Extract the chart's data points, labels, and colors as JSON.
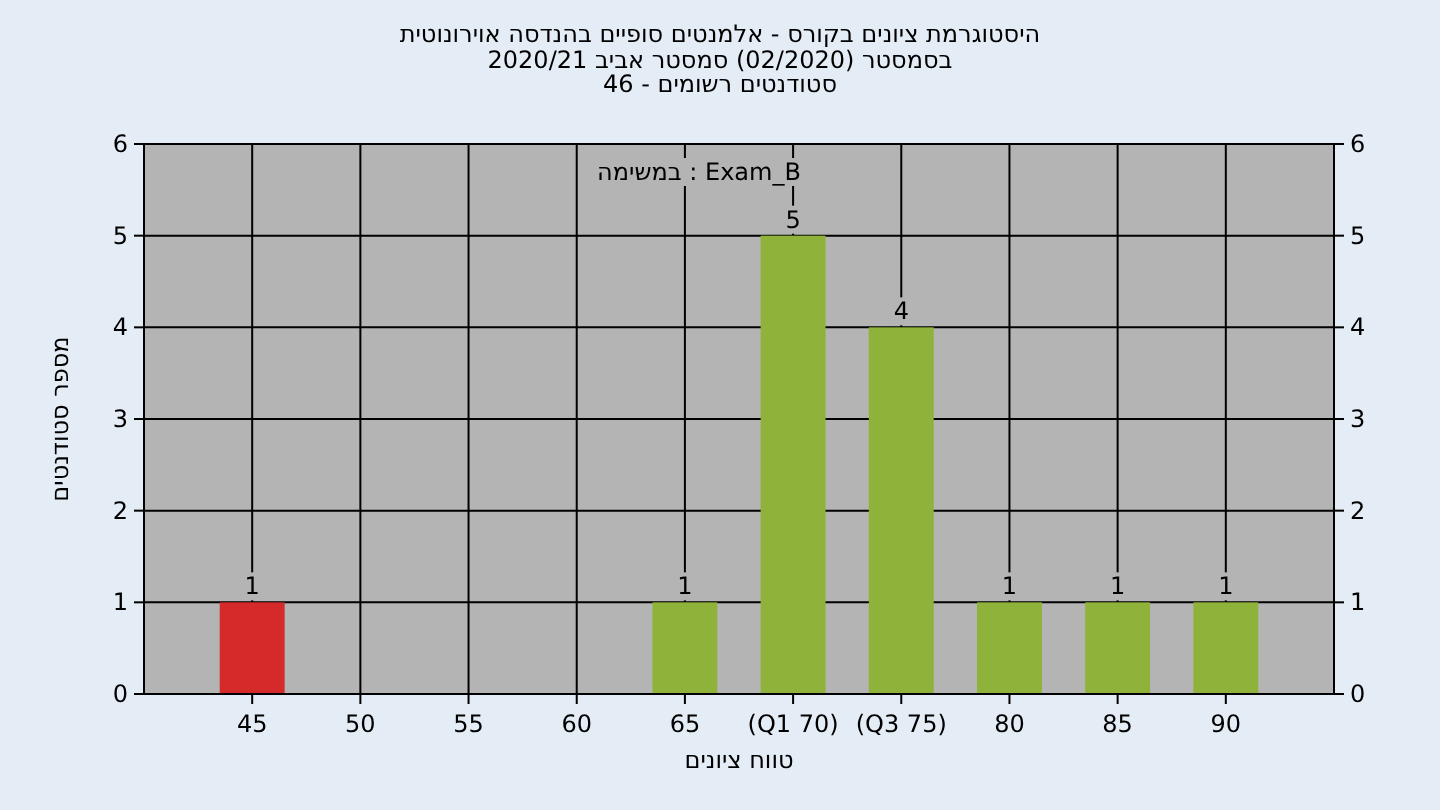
{
  "chart_data": {
    "type": "bar",
    "title": "היסטוגרמת ציונים בקורס - אלמנטים סופיים בהנדסה אוירונוטית",
    "subtitle": "בסמסטר (02/2020) סמסטר אביב 2020/21\nסטודנטים רשומים - 46",
    "xlabel": "טווח ציונים",
    "ylabel": "מספר סטודנטים",
    "annotations": [
      "במשימה : Exam_B"
    ],
    "categories": [
      "45",
      "50",
      "55",
      "60",
      "65",
      "(Q1 70)",
      "(Q3 75)",
      "80",
      "85",
      "90"
    ],
    "values": [
      1,
      0,
      0,
      0,
      1,
      5,
      4,
      1,
      1,
      1
    ],
    "colors": [
      "#d42a2a",
      "#8fb33a",
      "#8fb33a",
      "#8fb33a",
      "#8fb33a",
      "#8fb33a",
      "#8fb33a",
      "#8fb33a",
      "#8fb33a",
      "#8fb33a"
    ],
    "value_labels": [
      "1",
      null,
      null,
      null,
      "1",
      "5",
      "4",
      "1",
      "1",
      "1"
    ],
    "ylim": [
      0,
      6
    ],
    "yticks": [
      0,
      1,
      2,
      3,
      4,
      5,
      6
    ],
    "y2lim": [
      0,
      6
    ],
    "y2ticks": [
      0,
      1,
      2,
      3,
      4,
      5,
      6
    ],
    "grid": true
  }
}
